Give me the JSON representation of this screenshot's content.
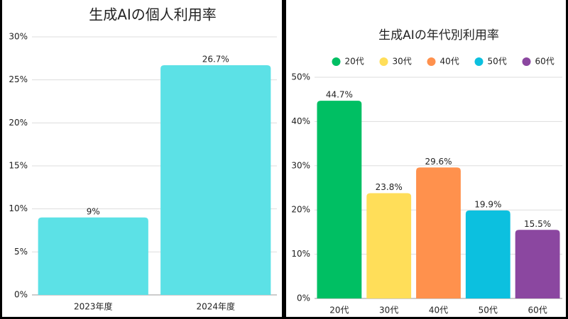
{
  "chart_data": [
    {
      "type": "bar",
      "title": "生成AIの個人利用率",
      "categories": [
        "2023年度",
        "2024年度"
      ],
      "values": [
        9,
        26.7
      ],
      "value_labels": [
        "9%",
        "26.7%"
      ],
      "color": "#5ce1e6",
      "ylim": [
        0,
        30
      ],
      "yticks": [
        {
          "value": 0,
          "label": "0%"
        },
        {
          "value": 5,
          "label": "5%"
        },
        {
          "value": 10,
          "label": "10%"
        },
        {
          "value": 15,
          "label": "15%"
        },
        {
          "value": 20,
          "label": "20%"
        },
        {
          "value": 25,
          "label": "25%"
        },
        {
          "value": 30,
          "label": "30%"
        }
      ],
      "grid": true
    },
    {
      "type": "bar",
      "title": "生成AIの年代別利用率",
      "categories": [
        "20代",
        "30代",
        "40代",
        "50代",
        "60代"
      ],
      "values": [
        44.7,
        23.8,
        29.6,
        19.9,
        15.5
      ],
      "value_labels": [
        "44.7%",
        "23.8%",
        "29.6%",
        "19.9%",
        "15.5%"
      ],
      "colors": [
        "#00bf63",
        "#ffde59",
        "#ff914d",
        "#0cc0df",
        "#8b47a0"
      ],
      "legend": "top",
      "ylim": [
        0,
        50
      ],
      "yticks": [
        {
          "value": 0,
          "label": "0%"
        },
        {
          "value": 10,
          "label": "10%"
        },
        {
          "value": 20,
          "label": "20%"
        },
        {
          "value": 30,
          "label": "30%"
        },
        {
          "value": 40,
          "label": "40%"
        },
        {
          "value": 50,
          "label": "50%"
        }
      ],
      "grid": true
    }
  ]
}
